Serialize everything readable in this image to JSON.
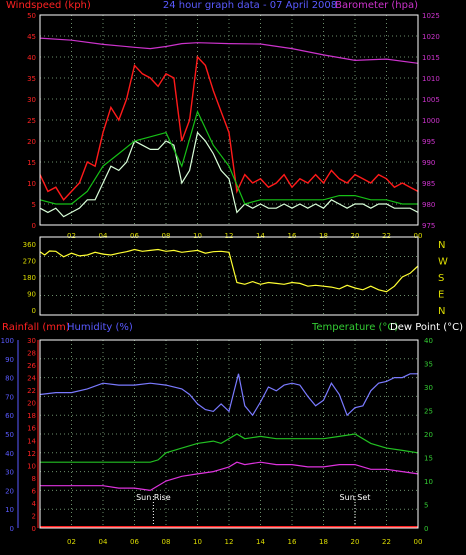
{
  "colors": {
    "background": "#000000",
    "grid": "#6b8e6b",
    "axis_box": "#ffffff",
    "gust": "#ff1a1a",
    "speed": "#d9ffd9",
    "average": "#16c016",
    "barometer": "#cc33cc",
    "direction": "#ffff33",
    "humidity": "#7a7aff",
    "temperature": "#22c022",
    "dewpoint": "#dd33dd",
    "rainfall": "#ff2222",
    "label_red": "#ff2222",
    "label_blue": "#5a5aff",
    "label_magenta": "#cc33cc",
    "label_green": "#33cc33",
    "label_white": "#ffffff",
    "tick_label": "#dddd00"
  },
  "chart_data": [
    {
      "type": "line",
      "name": "wind-barometer",
      "title": "24 hour graph data - 07 April 2008",
      "ylabel_left": "Windspeed (kph)",
      "ylabel_right": "Barometer (hpa)",
      "xlim": [
        0,
        24
      ],
      "ylim": [
        0,
        50
      ],
      "ylim_right": [
        975,
        1025
      ],
      "x_ticks": [
        "02",
        "04",
        "06",
        "08",
        "10",
        "12",
        "14",
        "16",
        "18",
        "20",
        "22",
        "00"
      ],
      "y_ticks": [
        "0",
        "5",
        "10",
        "15",
        "20",
        "25",
        "30",
        "35",
        "40",
        "45",
        "50"
      ],
      "y_ticks_right": [
        "975",
        "980",
        "985",
        "990",
        "995",
        "1000",
        "1005",
        "1010",
        "1015",
        "1020",
        "1025"
      ],
      "grid": true,
      "series": [
        {
          "name": "gust",
          "x": [
            0,
            0.5,
            1,
            1.5,
            2,
            2.5,
            3,
            3.5,
            4,
            4.5,
            5,
            5.5,
            6,
            6.5,
            7,
            7.5,
            8,
            8.5,
            9,
            9.5,
            10,
            10.5,
            11,
            11.5,
            12,
            12.5,
            13,
            13.5,
            14,
            14.5,
            15,
            15.5,
            16,
            16.5,
            17,
            17.5,
            18,
            18.5,
            19,
            19.5,
            20,
            20.5,
            21,
            21.5,
            22,
            22.5,
            23,
            23.5,
            24
          ],
          "values": [
            12,
            8,
            9,
            6,
            8,
            10,
            15,
            14,
            22,
            28,
            25,
            30,
            38,
            36,
            35,
            33,
            36,
            35,
            20,
            25,
            40,
            38,
            32,
            27,
            22,
            8,
            12,
            10,
            11,
            9,
            10,
            12,
            9,
            11,
            10,
            12,
            10,
            13,
            11,
            10,
            12,
            11,
            10,
            12,
            11,
            9,
            10,
            9,
            8
          ]
        },
        {
          "name": "windspeed",
          "x": [
            0,
            0.5,
            1,
            1.5,
            2,
            2.5,
            3,
            3.5,
            4,
            4.5,
            5,
            5.5,
            6,
            6.5,
            7,
            7.5,
            8,
            8.5,
            9,
            9.5,
            10,
            10.5,
            11,
            11.5,
            12,
            12.5,
            13,
            13.5,
            14,
            14.5,
            15,
            15.5,
            16,
            16.5,
            17,
            17.5,
            18,
            18.5,
            19,
            19.5,
            20,
            20.5,
            21,
            21.5,
            22,
            22.5,
            23,
            23.5,
            24
          ],
          "values": [
            4,
            3,
            4,
            2,
            3,
            4,
            6,
            6,
            10,
            14,
            13,
            15,
            20,
            19,
            18,
            18,
            20,
            19,
            10,
            13,
            22,
            20,
            17,
            13,
            11,
            3,
            5,
            4,
            5,
            4,
            4,
            5,
            4,
            5,
            4,
            5,
            4,
            6,
            5,
            4,
            5,
            5,
            4,
            5,
            5,
            4,
            4,
            4,
            3
          ]
        },
        {
          "name": "average",
          "x": [
            0,
            1,
            2,
            3,
            4,
            5,
            6,
            7,
            8,
            9,
            10,
            11,
            12,
            13,
            14,
            15,
            16,
            17,
            18,
            19,
            20,
            21,
            22,
            23,
            24
          ],
          "values": [
            6,
            5,
            5,
            8,
            14,
            17,
            20,
            21,
            22,
            14,
            27,
            19,
            14,
            5,
            6,
            6,
            6,
            6,
            6,
            7,
            7,
            6,
            6,
            5,
            5
          ]
        },
        {
          "name": "barometer",
          "axis": "right",
          "x": [
            0,
            2,
            4,
            6,
            7,
            8,
            9,
            10,
            12,
            14,
            16,
            18,
            20,
            22,
            24
          ],
          "values": [
            1019.5,
            1019,
            1018,
            1017.3,
            1017,
            1017.5,
            1018.2,
            1018.4,
            1018.2,
            1018.1,
            1017,
            1015.5,
            1014.2,
            1014.5,
            1013.5
          ]
        }
      ]
    },
    {
      "type": "line",
      "name": "wind-direction",
      "xlim": [
        0,
        24
      ],
      "ylim": [
        0,
        360
      ],
      "y_ticks": [
        "0",
        "90",
        "180",
        "270",
        "360"
      ],
      "compass": [
        "N",
        "W",
        "S",
        "E",
        "N"
      ],
      "grid": true,
      "series": [
        {
          "name": "direction",
          "x": [
            0,
            0.3,
            0.6,
            1,
            1.5,
            2,
            2.5,
            3,
            3.5,
            4,
            4.5,
            5,
            5.5,
            6,
            6.5,
            7,
            7.5,
            8,
            8.5,
            9,
            9.5,
            10,
            10.5,
            11,
            11.5,
            12,
            12.5,
            13,
            13.5,
            14,
            14.5,
            15,
            15.5,
            16,
            16.5,
            17,
            17.5,
            18,
            18.5,
            19,
            19.5,
            20,
            20.5,
            21,
            21.5,
            22,
            22.5,
            23,
            23.5,
            24
          ],
          "values": [
            318,
            300,
            322,
            320,
            290,
            310,
            295,
            300,
            315,
            305,
            300,
            310,
            318,
            330,
            320,
            325,
            330,
            320,
            325,
            315,
            320,
            325,
            310,
            318,
            320,
            315,
            150,
            140,
            155,
            140,
            150,
            145,
            140,
            150,
            145,
            130,
            135,
            130,
            125,
            115,
            135,
            120,
            110,
            130,
            110,
            100,
            130,
            180,
            200,
            240
          ]
        }
      ]
    },
    {
      "type": "line",
      "name": "temperature-humidity",
      "ylabel_rain": "Rainfall (mm)",
      "ylabel_humidity": "Humidity (%)",
      "ylabel_temp": "Temperature (°C)",
      "ylabel_dew": "Dew Point (°C)",
      "xlim": [
        0,
        24
      ],
      "humidity_ylim": [
        0,
        100
      ],
      "rain_ylim": [
        0,
        30
      ],
      "temp_ylim": [
        0,
        40
      ],
      "humidity_ticks": [
        "0",
        "10",
        "20",
        "30",
        "40",
        "50",
        "60",
        "70",
        "80",
        "90",
        "100"
      ],
      "rain_ticks": [
        "0",
        "2",
        "4",
        "6",
        "8",
        "10",
        "12",
        "14",
        "16",
        "18",
        "20",
        "22",
        "24",
        "26",
        "28",
        "30"
      ],
      "temp_ticks": [
        "0",
        "5",
        "10",
        "15",
        "20",
        "25",
        "30",
        "35",
        "40"
      ],
      "x_ticks": [
        "02",
        "04",
        "06",
        "08",
        "10",
        "12",
        "14",
        "16",
        "18",
        "20",
        "22",
        "00"
      ],
      "annotations": [
        {
          "label": "Sun Rise",
          "x": 7.2
        },
        {
          "label": "Sun Set",
          "x": 20
        }
      ],
      "grid": true,
      "series": [
        {
          "name": "humidity",
          "x": [
            0,
            1,
            2,
            3,
            4,
            5,
            6,
            7,
            8,
            9,
            9.5,
            10,
            10.5,
            11,
            11.5,
            12,
            12.3,
            12.6,
            13,
            13.5,
            14,
            14.5,
            15,
            15.5,
            16,
            16.5,
            17,
            17.5,
            18,
            18.5,
            19,
            19.5,
            20,
            20.5,
            21,
            21.5,
            22,
            22.5,
            23,
            23.5,
            24
          ],
          "values": [
            71,
            72,
            72,
            74,
            77,
            76,
            76,
            77,
            76,
            74,
            71,
            66,
            63,
            62,
            66,
            62,
            72,
            82,
            65,
            60,
            67,
            75,
            73,
            76,
            77,
            76,
            70,
            65,
            68,
            77,
            71,
            60,
            64,
            65,
            73,
            77,
            78,
            80,
            80,
            82,
            82
          ]
        },
        {
          "name": "temperature",
          "x": [
            0,
            1,
            2,
            3,
            4,
            5,
            6,
            7,
            7.5,
            8,
            8.5,
            9,
            10,
            11,
            11.5,
            12,
            12.5,
            13,
            14,
            15,
            16,
            17,
            18,
            19,
            20,
            21,
            22,
            23,
            24
          ],
          "values": [
            14,
            14,
            14,
            14,
            14,
            14,
            14,
            14,
            14.5,
            16,
            16.5,
            17,
            18,
            18.5,
            18,
            19,
            20,
            19,
            19.5,
            19,
            19,
            19,
            19,
            19.5,
            20,
            18,
            17,
            16.5,
            16
          ]
        },
        {
          "name": "dew-point",
          "x": [
            0,
            1,
            2,
            3,
            4,
            5,
            6,
            7,
            8,
            9,
            10,
            11,
            11.5,
            12,
            12.5,
            13,
            14,
            15,
            16,
            17,
            18,
            19,
            20,
            21,
            22,
            23,
            24
          ],
          "values": [
            9,
            9,
            9,
            9,
            9,
            8.5,
            8.5,
            8,
            10,
            11,
            11.5,
            12,
            12.5,
            13,
            14,
            13.5,
            14,
            13.5,
            13.5,
            13,
            13,
            13.5,
            13.5,
            12.5,
            12.5,
            12,
            11.5
          ]
        },
        {
          "name": "rainfall",
          "axis": "rain",
          "x": [
            0,
            24
          ],
          "values": [
            0,
            0
          ]
        }
      ]
    }
  ]
}
